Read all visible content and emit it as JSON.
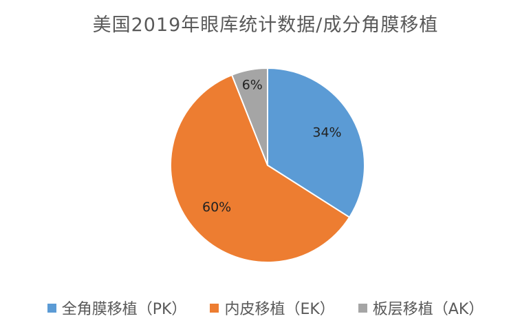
{
  "chart_data": {
    "type": "pie",
    "title": "美国2019年眼库统计数据/成分角膜移植",
    "categories": [
      "全角膜移植（PK）",
      "内皮移植（EK）",
      "板层移植（AK）"
    ],
    "values": [
      34,
      60,
      6
    ],
    "data_labels": [
      "34%",
      "60%",
      "6%"
    ],
    "colors": [
      "#5B9BD5",
      "#ED7D31",
      "#A5A5A5"
    ],
    "start_angle_deg": 0,
    "direction": "clockwise",
    "legend_position": "bottom"
  }
}
